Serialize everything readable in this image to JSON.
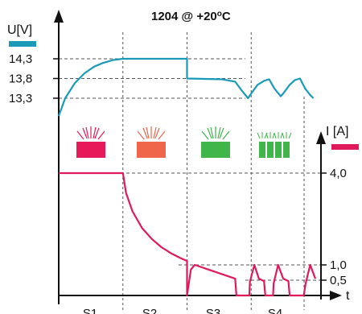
{
  "chart_data": {
    "type": "line",
    "title": "1204 @ +20°C",
    "title_main": "1204 @ +20",
    "title_degree": "o",
    "title_unit": "C",
    "x_axis": {
      "label": "t",
      "stages": [
        "S1",
        "S2",
        "S3",
        "S4"
      ],
      "stage_bounds": [
        0,
        1,
        2,
        3,
        4
      ]
    },
    "voltage_axis": {
      "label": "U[V]",
      "ticks": [
        13.3,
        13.8,
        14.3
      ],
      "tick_labels": [
        "13,3",
        "13,8",
        "14,3"
      ],
      "range": [
        12.6,
        15.2
      ]
    },
    "current_axis": {
      "label": "I [A]",
      "ticks": [
        0.5,
        1.0,
        4.0
      ],
      "tick_labels": [
        "0,5",
        "1,0",
        "4,0"
      ],
      "range": [
        0,
        6.4
      ]
    },
    "colors": {
      "voltage": "#1b9ab8",
      "current": "#e0195a",
      "grid": "#555555",
      "stage_icon_colors": [
        "#e8195a",
        "#f0664a",
        "#3fb54a",
        "#3fb54a"
      ]
    },
    "stage_icons": [
      "bulk-charge-icon",
      "absorption-icon",
      "float-icon",
      "pulse-maintenance-icon"
    ],
    "series": [
      {
        "name": "U[V]",
        "axis": "voltage",
        "points": [
          [
            0,
            12.85
          ],
          [
            0.1,
            13.3
          ],
          [
            0.25,
            13.68
          ],
          [
            0.4,
            13.93
          ],
          [
            0.55,
            14.1
          ],
          [
            0.7,
            14.2
          ],
          [
            0.85,
            14.27
          ],
          [
            1,
            14.3
          ],
          [
            2,
            14.3
          ],
          [
            2,
            13.8
          ],
          [
            2.55,
            13.78
          ],
          [
            2.75,
            13.72
          ],
          [
            2.85,
            13.5
          ],
          [
            2.95,
            13.3
          ],
          [
            3.0,
            13.42
          ],
          [
            3.1,
            13.64
          ],
          [
            3.2,
            13.74
          ],
          [
            3.28,
            13.78
          ],
          [
            3.36,
            13.55
          ],
          [
            3.46,
            13.35
          ],
          [
            3.5,
            13.42
          ],
          [
            3.6,
            13.64
          ],
          [
            3.68,
            13.76
          ],
          [
            3.76,
            13.8
          ],
          [
            3.84,
            13.55
          ],
          [
            3.92,
            13.38
          ],
          [
            3.97,
            13.3
          ]
        ]
      },
      {
        "name": "I [A]",
        "axis": "current",
        "points": [
          [
            0,
            4.0
          ],
          [
            1,
            4.0
          ],
          [
            1.05,
            3.35
          ],
          [
            1.15,
            2.75
          ],
          [
            1.3,
            2.2
          ],
          [
            1.45,
            1.85
          ],
          [
            1.6,
            1.58
          ],
          [
            1.75,
            1.38
          ],
          [
            1.9,
            1.22
          ],
          [
            2.0,
            1.13
          ],
          [
            2.0,
            0
          ],
          [
            2.06,
            0.85
          ],
          [
            2.12,
            1.0
          ],
          [
            2.75,
            0.55
          ],
          [
            2.77,
            0
          ],
          [
            2.97,
            0
          ],
          [
            2.98,
            0.45
          ],
          [
            3.05,
            1.0
          ],
          [
            3.12,
            0.55
          ],
          [
            3.2,
            0.47
          ],
          [
            3.22,
            0
          ],
          [
            3.34,
            0
          ],
          [
            3.35,
            0.4
          ],
          [
            3.42,
            1.0
          ],
          [
            3.5,
            0.55
          ],
          [
            3.58,
            0.47
          ],
          [
            3.6,
            0
          ],
          [
            3.82,
            0
          ],
          [
            3.85,
            0.4
          ],
          [
            3.92,
            1.0
          ],
          [
            4.0,
            0.55
          ]
        ]
      }
    ]
  }
}
